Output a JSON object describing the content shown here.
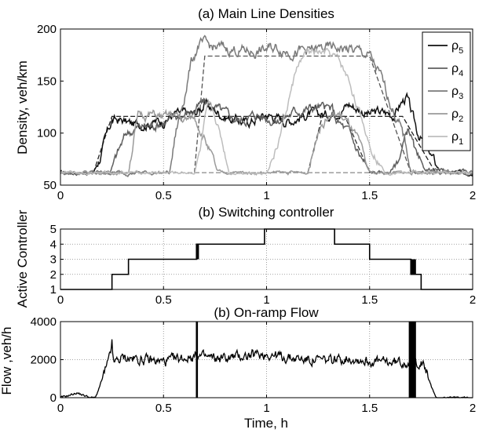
{
  "chart_data": [
    {
      "type": "line",
      "title": "(a) Main Line Densities",
      "xlabel": "",
      "ylabel": "Density, veh/km",
      "xlim": [
        0,
        2
      ],
      "ylim": [
        50,
        200
      ],
      "xticks": [
        "0",
        "0.5",
        "1",
        "1.5",
        "2"
      ],
      "yticks": [
        "50",
        "100",
        "150",
        "200"
      ],
      "grid": "vertical dotted",
      "legend": {
        "placement": "top-right",
        "entries": [
          "ρ5",
          "ρ4",
          "ρ3",
          "ρ2",
          "ρ1"
        ]
      },
      "series": [
        {
          "name": "ρ5",
          "color": "#111111",
          "noise": 4.5,
          "points": [
            [
              0,
              62
            ],
            [
              0.16,
              62
            ],
            [
              0.19,
              75
            ],
            [
              0.22,
              95
            ],
            [
              0.25,
              112
            ],
            [
              0.3,
              112
            ],
            [
              0.35,
              108
            ],
            [
              0.5,
              112
            ],
            [
              0.55,
              118
            ],
            [
              0.65,
              118
            ],
            [
              0.7,
              128
            ],
            [
              0.75,
              122
            ],
            [
              0.8,
              116
            ],
            [
              0.9,
              110
            ],
            [
              1.0,
              118
            ],
            [
              1.1,
              112
            ],
            [
              1.2,
              118
            ],
            [
              1.3,
              118
            ],
            [
              1.4,
              128
            ],
            [
              1.5,
              118
            ],
            [
              1.55,
              120
            ],
            [
              1.62,
              118
            ],
            [
              1.65,
              128
            ],
            [
              1.68,
              135
            ],
            [
              1.7,
              120
            ],
            [
              1.73,
              102
            ],
            [
              1.78,
              85
            ],
            [
              1.82,
              70
            ],
            [
              1.85,
              62
            ],
            [
              2.0,
              62
            ]
          ]
        },
        {
          "name": "ρ4",
          "color": "#5e5e5e",
          "noise": 4.5,
          "points": [
            [
              0,
              62
            ],
            [
              0.24,
              62
            ],
            [
              0.28,
              82
            ],
            [
              0.32,
              100
            ],
            [
              0.37,
              105
            ],
            [
              0.45,
              108
            ],
            [
              0.52,
              112
            ],
            [
              0.6,
              118
            ],
            [
              0.65,
              122
            ],
            [
              0.7,
              130
            ],
            [
              0.75,
              125
            ],
            [
              0.8,
              118
            ],
            [
              0.87,
              112
            ],
            [
              0.95,
              118
            ],
            [
              1.05,
              112
            ],
            [
              1.15,
              122
            ],
            [
              1.25,
              125
            ],
            [
              1.32,
              122
            ],
            [
              1.34,
              112
            ],
            [
              1.4,
              100
            ],
            [
              1.45,
              80
            ],
            [
              1.5,
              62
            ],
            [
              1.6,
              62
            ],
            [
              1.65,
              80
            ],
            [
              1.69,
              105
            ],
            [
              1.71,
              90
            ],
            [
              1.73,
              75
            ],
            [
              1.76,
              65
            ],
            [
              2.0,
              62
            ]
          ]
        },
        {
          "name": "ρ3",
          "color": "#7a7a7a",
          "noise": 5,
          "points": [
            [
              0,
              62
            ],
            [
              0.53,
              62
            ],
            [
              0.56,
              100
            ],
            [
              0.6,
              135
            ],
            [
              0.63,
              165
            ],
            [
              0.67,
              185
            ],
            [
              0.75,
              182
            ],
            [
              0.85,
              180
            ],
            [
              0.95,
              178
            ],
            [
              1.05,
              182
            ],
            [
              1.15,
              178
            ],
            [
              1.25,
              180
            ],
            [
              1.35,
              182
            ],
            [
              1.45,
              178
            ],
            [
              1.5,
              174
            ],
            [
              1.55,
              155
            ],
            [
              1.6,
              130
            ],
            [
              1.65,
              105
            ],
            [
              1.68,
              85
            ],
            [
              1.7,
              65
            ],
            [
              1.75,
              62
            ],
            [
              2.0,
              62
            ]
          ]
        },
        {
          "name": "ρ2",
          "color": "#9a9a9a",
          "noise": 4,
          "points": [
            [
              0,
              62
            ],
            [
              0.33,
              62
            ],
            [
              0.36,
              100
            ],
            [
              0.38,
              118
            ],
            [
              0.45,
              118
            ],
            [
              0.5,
              115
            ],
            [
              0.55,
              118
            ],
            [
              0.6,
              112
            ],
            [
              0.65,
              115
            ],
            [
              0.67,
              108
            ],
            [
              0.7,
              95
            ],
            [
              0.73,
              80
            ],
            [
              0.76,
              62
            ],
            [
              1.2,
              62
            ],
            [
              1.23,
              85
            ],
            [
              1.25,
              105
            ],
            [
              1.3,
              115
            ],
            [
              1.35,
              118
            ],
            [
              1.4,
              108
            ],
            [
              1.45,
              90
            ],
            [
              1.48,
              70
            ],
            [
              1.5,
              62
            ],
            [
              2.0,
              62
            ]
          ]
        },
        {
          "name": "ρ1",
          "color": "#bdbdbd",
          "noise": 3.5,
          "points": [
            [
              0,
              62
            ],
            [
              0.65,
              62
            ],
            [
              0.68,
              85
            ],
            [
              0.7,
              110
            ],
            [
              0.72,
              125
            ],
            [
              0.75,
              115
            ],
            [
              0.78,
              95
            ],
            [
              0.82,
              62
            ],
            [
              1.0,
              62
            ],
            [
              1.05,
              85
            ],
            [
              1.1,
              125
            ],
            [
              1.15,
              165
            ],
            [
              1.2,
              178
            ],
            [
              1.3,
              176
            ],
            [
              1.35,
              170
            ],
            [
              1.4,
              150
            ],
            [
              1.45,
              120
            ],
            [
              1.5,
              90
            ],
            [
              1.55,
              70
            ],
            [
              1.58,
              62
            ],
            [
              2.0,
              62
            ]
          ]
        }
      ],
      "references": [
        {
          "color": "#222222",
          "points": [
            [
              0.16,
              62
            ],
            [
              0.25,
              116
            ],
            [
              1.66,
              116
            ],
            [
              1.82,
              62
            ]
          ]
        },
        {
          "color": "#555555",
          "points": [
            [
              0.65,
              62
            ],
            [
              0.7,
              174
            ],
            [
              1.5,
              174
            ],
            [
              1.7,
              62
            ]
          ]
        },
        {
          "color": "#333333",
          "points": [
            [
              1.2,
              62
            ],
            [
              1.27,
              116
            ],
            [
              1.38,
              116
            ],
            [
              1.5,
              62
            ]
          ]
        },
        {
          "color": "#888888",
          "points": [
            [
              0,
              62
            ],
            [
              2,
              62
            ]
          ]
        }
      ]
    },
    {
      "type": "line",
      "title": "(b) Switching controller",
      "xlabel": "",
      "ylabel": "Active Controller",
      "xlim": [
        0,
        2
      ],
      "ylim": [
        1,
        5
      ],
      "xticks": [
        "0",
        "0.5",
        "1",
        "1.5",
        "2"
      ],
      "yticks": [
        "1",
        "2",
        "3",
        "4",
        "5"
      ],
      "grid": "dotted both",
      "series": [
        {
          "name": "",
          "color": "#000000",
          "steps": [
            [
              0,
              1
            ],
            [
              0.25,
              2
            ],
            [
              0.33,
              3
            ],
            [
              0.66,
              4
            ],
            [
              0.99,
              5
            ],
            [
              1.33,
              4
            ],
            [
              1.5,
              3
            ],
            [
              1.7,
              2
            ],
            [
              1.75,
              1
            ],
            [
              2.0,
              1
            ]
          ],
          "chatter": [
            [
              0.66,
              0.672,
              3,
              4
            ],
            [
              1.7,
              1.725,
              2,
              3
            ]
          ]
        }
      ]
    },
    {
      "type": "line",
      "title": "(b) On-ramp Flow",
      "xlabel": "Time, h",
      "ylabel": "Flow ,veh/h",
      "xlim": [
        0,
        2
      ],
      "ylim": [
        0,
        4000
      ],
      "xticks": [
        "0",
        "0.5",
        "1",
        "1.5",
        "2"
      ],
      "yticks": [
        "0",
        "2000",
        "4000"
      ],
      "grid": "dotted both",
      "series": [
        {
          "name": "",
          "color": "#000000",
          "noise": 200,
          "points": [
            [
              0,
              0
            ],
            [
              0.05,
              150
            ],
            [
              0.08,
              250
            ],
            [
              0.12,
              100
            ],
            [
              0.15,
              0
            ],
            [
              0.17,
              0
            ],
            [
              0.2,
              900
            ],
            [
              0.23,
              1800
            ],
            [
              0.245,
              2300
            ],
            [
              0.25,
              3200
            ],
            [
              0.255,
              1800
            ],
            [
              0.3,
              2100
            ],
            [
              0.4,
              2000
            ],
            [
              0.5,
              1900
            ],
            [
              0.6,
              2100
            ],
            [
              0.66,
              2200
            ],
            [
              0.75,
              2050
            ],
            [
              0.85,
              2150
            ],
            [
              1.0,
              2300
            ],
            [
              1.1,
              2100
            ],
            [
              1.2,
              2000
            ],
            [
              1.3,
              1950
            ],
            [
              1.4,
              2100
            ],
            [
              1.5,
              1900
            ],
            [
              1.6,
              1850
            ],
            [
              1.7,
              1900
            ],
            [
              1.75,
              1850
            ],
            [
              1.78,
              1300
            ],
            [
              1.8,
              600
            ],
            [
              1.82,
              0
            ],
            [
              2.0,
              0
            ]
          ],
          "bursts": [
            [
              0.657,
              0.667
            ],
            [
              1.69,
              1.725
            ]
          ]
        }
      ]
    }
  ]
}
